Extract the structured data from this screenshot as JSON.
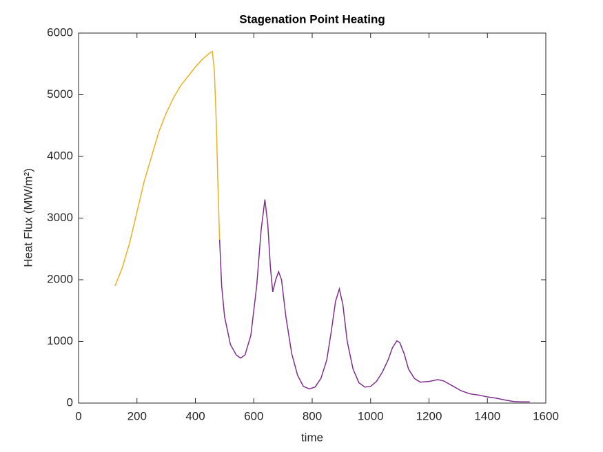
{
  "chart_data": {
    "type": "line",
    "title": "Stagenation Point Heating",
    "xlabel": "time",
    "ylabel": "Heat Flux (MW/m²)",
    "xlim": [
      0,
      1600
    ],
    "xticks": [
      0,
      200,
      400,
      600,
      800,
      1000,
      1200,
      1400,
      1600
    ],
    "ylim": [
      0,
      6000
    ],
    "yticks": [
      0,
      1000,
      2000,
      3000,
      4000,
      5000,
      6000
    ],
    "grid": false,
    "series": [
      {
        "color": "#EDB120",
        "x": [
          125,
          150,
          175,
          200,
          225,
          250,
          275,
          300,
          325,
          350,
          375,
          400,
          425,
          450,
          458,
          465,
          472,
          478,
          483
        ],
        "values": [
          1900,
          2200,
          2600,
          3100,
          3600,
          4000,
          4400,
          4700,
          4950,
          5150,
          5300,
          5450,
          5580,
          5680,
          5700,
          5400,
          4500,
          3400,
          2650
        ]
      },
      {
        "color": "#7E2F8E",
        "x": [
          483,
          490,
          500,
          520,
          540,
          555,
          570,
          590,
          610,
          625,
          638,
          648,
          657,
          665,
          675,
          685,
          695,
          710,
          730,
          750,
          770,
          790,
          810,
          830,
          850,
          865,
          880,
          893,
          905,
          920,
          940,
          960,
          980,
          1000,
          1020,
          1040,
          1060,
          1075,
          1090,
          1100,
          1115,
          1130,
          1150,
          1170,
          1200,
          1230,
          1250,
          1280,
          1310,
          1340,
          1370,
          1400,
          1430,
          1460,
          1490,
          1520,
          1545
        ],
        "values": [
          2650,
          1900,
          1400,
          950,
          780,
          730,
          780,
          1100,
          1900,
          2800,
          3300,
          2900,
          2200,
          1800,
          2000,
          2130,
          2000,
          1400,
          800,
          450,
          270,
          230,
          260,
          400,
          700,
          1150,
          1650,
          1850,
          1600,
          1000,
          550,
          330,
          260,
          270,
          350,
          500,
          700,
          900,
          1010,
          980,
          800,
          550,
          400,
          340,
          350,
          380,
          360,
          280,
          200,
          150,
          130,
          100,
          80,
          50,
          25,
          20,
          20
        ]
      }
    ]
  }
}
